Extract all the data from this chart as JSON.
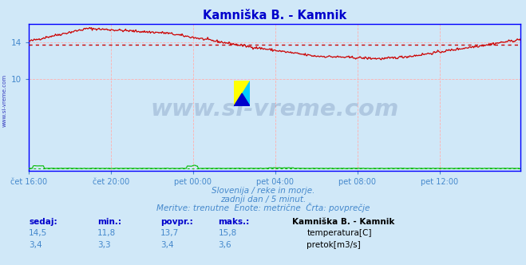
{
  "title": "Kamniška B. - Kamnik",
  "title_color": "#0000cc",
  "bg_color": "#d0e8f8",
  "plot_bg_color": "#d0e8f8",
  "grid_color": "#ffb0b0",
  "xlabel_ticks": [
    "čet 16:00",
    "čet 20:00",
    "pet 00:00",
    "pet 04:00",
    "pet 08:00",
    "pet 12:00"
  ],
  "tick_positions": [
    0,
    96,
    192,
    288,
    384,
    480
  ],
  "total_points": 576,
  "ylim": [
    0,
    16
  ],
  "yticks": [
    10,
    14
  ],
  "temp_color": "#cc0000",
  "flow_color": "#00bb00",
  "avg_line_color": "#cc0000",
  "avg_temp": 13.7,
  "avg_flow": 0.3,
  "watermark_text": "www.si-vreme.com",
  "watermark_color": "#1a3a7a",
  "watermark_alpha": 0.18,
  "footer_line1": "Slovenija / reke in morje.",
  "footer_line2": "zadnji dan / 5 minut.",
  "footer_line3": "Meritve: trenutne  Enote: metrične  Črta: povprečje",
  "footer_color": "#4488cc",
  "table_headers": [
    "sedaj:",
    "min.:",
    "povpr.:",
    "maks.:"
  ],
  "table_header_color": "#0000cc",
  "table_values_temp": [
    "14,5",
    "11,8",
    "13,7",
    "15,8"
  ],
  "table_values_flow": [
    "3,4",
    "3,3",
    "3,4",
    "3,6"
  ],
  "table_value_color": "#4488cc",
  "legend_title": "Kamniška B. - Kamnik",
  "legend_items": [
    "temperatura[C]",
    "pretok[m3/s]"
  ],
  "legend_colors": [
    "#cc0000",
    "#00bb00"
  ],
  "axis_color": "#0000ff",
  "ylabel_text": "www.si-vreme.com",
  "ylabel_color": "#0000aa",
  "logo_colors": [
    "#ffff00",
    "#00ccff",
    "#0000cc"
  ]
}
